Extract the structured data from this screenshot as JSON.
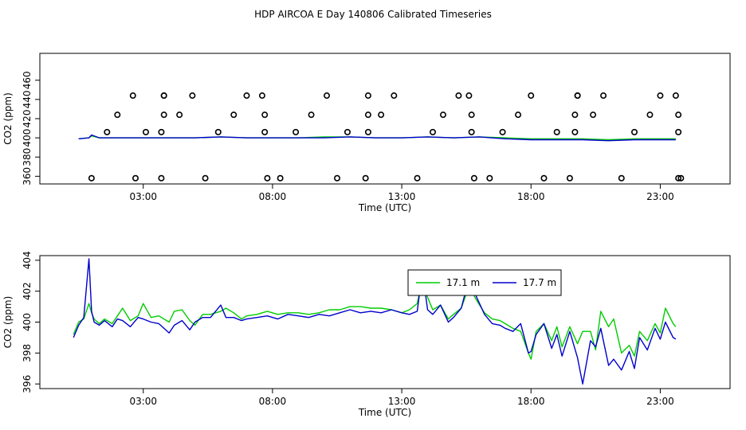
{
  "title": "HDP AIRCOA E  Day 140806  Calibrated Timeseries",
  "chart_data": [
    {
      "type": "scatter+line",
      "xlabel": "Time (UTC)",
      "ylabel": "CO2 (ppm)",
      "xlim": [
        -1.0,
        25.7
      ],
      "ylim": [
        352,
        488
      ],
      "x_ticks": [
        3,
        8,
        13,
        18,
        23
      ],
      "x_tick_labels": [
        "03:00",
        "08:00",
        "13:00",
        "18:00",
        "23:00"
      ],
      "y_ticks": [
        360,
        380,
        400,
        420,
        440,
        460
      ],
      "y_tick_labels": [
        "360",
        "380",
        "400",
        "420",
        "440",
        "460"
      ],
      "legend": "none",
      "series": [
        {
          "color": "#00cc00",
          "x": [
            0.5,
            0.9,
            1.0,
            1.3,
            1.6,
            2.0,
            3.0,
            4.0,
            5.0,
            6.0,
            7.0,
            8.0,
            9.0,
            10.0,
            11.0,
            12.0,
            13.0,
            14.0,
            15.0,
            16.0,
            17.0,
            18.0,
            19.0,
            20.0,
            21.0,
            22.0,
            23.0,
            23.6
          ],
          "y": [
            399,
            400,
            402,
            400,
            400,
            400,
            400,
            400,
            400,
            401,
            400,
            400,
            400,
            401,
            401,
            400,
            400,
            401,
            400,
            401,
            400,
            399,
            399,
            399,
            398,
            399,
            399,
            399
          ]
        },
        {
          "color": "#0000cc",
          "x": [
            0.5,
            0.9,
            1.0,
            1.3,
            1.6,
            2.0,
            3.0,
            4.0,
            5.0,
            6.0,
            7.0,
            8.0,
            9.0,
            10.0,
            11.0,
            12.0,
            13.0,
            14.0,
            15.0,
            16.0,
            17.0,
            18.0,
            19.0,
            20.0,
            21.0,
            22.0,
            23.0,
            23.6
          ],
          "y": [
            399,
            400,
            403,
            400,
            400,
            400,
            400,
            400,
            400,
            401,
            400,
            400,
            400,
            400,
            401,
            400,
            400,
            401,
            400,
            401,
            399,
            398,
            398,
            398,
            397,
            398,
            398,
            398
          ]
        },
        {
          "name": "flags",
          "marker": "open-circle",
          "color": "#000000",
          "x": [
            1.0,
            1.6,
            2.0,
            2.6,
            2.7,
            3.1,
            3.7,
            3.7,
            3.8,
            3.8,
            3.8,
            4.4,
            4.9,
            5.4,
            5.9,
            6.5,
            7.0,
            7.6,
            7.7,
            7.7,
            7.8,
            8.3,
            8.9,
            9.5,
            10.1,
            10.5,
            10.9,
            11.6,
            11.7,
            11.7,
            11.7,
            12.2,
            12.7,
            13.6,
            14.2,
            14.6,
            15.2,
            15.6,
            15.7,
            15.7,
            15.8,
            16.4,
            16.9,
            17.5,
            18.0,
            18.5,
            19.0,
            19.5,
            19.7,
            19.7,
            19.8,
            19.8,
            20.4,
            20.8,
            21.5,
            22.0,
            22.6,
            23.0,
            23.6,
            23.7,
            23.7,
            23.7,
            23.8
          ],
          "y": [
            358,
            406,
            424,
            444,
            358,
            406,
            358,
            406,
            424,
            444,
            444,
            424,
            444,
            358,
            406,
            424,
            444,
            444,
            424,
            406,
            358,
            358,
            406,
            424,
            444,
            358,
            406,
            358,
            406,
            424,
            444,
            424,
            444,
            358,
            406,
            424,
            444,
            444,
            424,
            406,
            358,
            358,
            406,
            424,
            444,
            358,
            406,
            358,
            406,
            424,
            444,
            444,
            424,
            444,
            358,
            406,
            424,
            444,
            444,
            424,
            406,
            358,
            358
          ]
        }
      ]
    },
    {
      "type": "line",
      "xlabel": "Time (UTC)",
      "ylabel": "CO2 (ppm)",
      "xlim": [
        -1.0,
        25.7
      ],
      "ylim": [
        395.7,
        404.3
      ],
      "x_ticks": [
        3,
        8,
        13,
        18,
        23
      ],
      "x_tick_labels": [
        "03:00",
        "08:00",
        "13:00",
        "18:00",
        "23:00"
      ],
      "y_ticks": [
        396,
        398,
        400,
        402,
        404
      ],
      "y_tick_labels": [
        "396",
        "398",
        "400",
        "402",
        "404"
      ],
      "legend": "top-center",
      "series": [
        {
          "name": "17.1 m",
          "color": "#00cc00",
          "x": [
            0.3,
            0.5,
            0.7,
            0.9,
            1.0,
            1.1,
            1.3,
            1.5,
            1.8,
            2.0,
            2.2,
            2.5,
            2.8,
            3.0,
            3.3,
            3.6,
            4.0,
            4.2,
            4.5,
            4.8,
            5.0,
            5.3,
            5.6,
            6.0,
            6.2,
            6.5,
            6.8,
            7.0,
            7.4,
            7.8,
            8.2,
            8.6,
            9.0,
            9.4,
            9.8,
            10.2,
            10.6,
            11.0,
            11.4,
            11.8,
            12.2,
            12.6,
            13.0,
            13.3,
            13.6,
            13.8,
            14.0,
            14.2,
            14.5,
            14.8,
            15.0,
            15.3,
            15.6,
            15.9,
            16.2,
            16.5,
            16.8,
            17.0,
            17.3,
            17.6,
            17.9,
            18.0,
            18.2,
            18.5,
            18.8,
            19.0,
            19.2,
            19.5,
            19.8,
            20.0,
            20.3,
            20.5,
            20.7,
            21.0,
            21.2,
            21.5,
            21.8,
            22.0,
            22.2,
            22.5,
            22.8,
            23.0,
            23.2,
            23.5,
            23.6
          ],
          "y": [
            399.2,
            400.0,
            400.2,
            401.2,
            400.6,
            400.2,
            399.9,
            400.2,
            399.9,
            400.4,
            400.9,
            400.1,
            400.4,
            401.2,
            400.3,
            400.4,
            400.0,
            400.7,
            400.8,
            400.1,
            399.8,
            400.5,
            400.5,
            400.7,
            400.9,
            400.6,
            400.2,
            400.4,
            400.5,
            400.7,
            400.5,
            400.6,
            400.6,
            400.5,
            400.6,
            400.8,
            400.8,
            401.0,
            401.0,
            400.9,
            400.9,
            400.8,
            400.6,
            400.8,
            401.2,
            402.8,
            401.6,
            400.8,
            401.1,
            400.2,
            400.5,
            400.9,
            402.3,
            401.4,
            400.6,
            400.2,
            400.1,
            399.9,
            399.6,
            399.4,
            398.0,
            397.6,
            399.4,
            399.9,
            398.8,
            399.7,
            398.4,
            399.7,
            398.6,
            399.4,
            399.4,
            398.2,
            400.7,
            399.7,
            400.2,
            398.0,
            398.5,
            397.8,
            399.4,
            398.8,
            399.9,
            399.3,
            400.9,
            399.9,
            399.7
          ]
        },
        {
          "name": "17.7 m",
          "color": "#0000cc",
          "x": [
            0.3,
            0.5,
            0.7,
            0.9,
            1.0,
            1.1,
            1.3,
            1.5,
            1.8,
            2.0,
            2.2,
            2.5,
            2.8,
            3.0,
            3.3,
            3.6,
            4.0,
            4.2,
            4.5,
            4.8,
            5.0,
            5.3,
            5.6,
            6.0,
            6.2,
            6.5,
            6.8,
            7.0,
            7.4,
            7.8,
            8.2,
            8.6,
            9.0,
            9.4,
            9.8,
            10.2,
            10.6,
            11.0,
            11.4,
            11.8,
            12.2,
            12.6,
            13.0,
            13.3,
            13.6,
            13.8,
            14.0,
            14.2,
            14.5,
            14.8,
            15.0,
            15.3,
            15.6,
            15.9,
            16.2,
            16.5,
            16.8,
            17.0,
            17.3,
            17.6,
            17.9,
            18.0,
            18.2,
            18.5,
            18.8,
            19.0,
            19.2,
            19.5,
            19.8,
            20.0,
            20.3,
            20.5,
            20.7,
            21.0,
            21.2,
            21.5,
            21.8,
            22.0,
            22.2,
            22.5,
            22.8,
            23.0,
            23.2,
            23.5,
            23.6
          ],
          "y": [
            399.0,
            399.8,
            400.3,
            404.1,
            400.7,
            400.0,
            399.8,
            400.1,
            399.7,
            400.2,
            400.1,
            399.7,
            400.3,
            400.2,
            400.0,
            399.9,
            399.3,
            399.8,
            400.1,
            399.5,
            400.0,
            400.3,
            400.3,
            401.1,
            400.3,
            400.3,
            400.1,
            400.2,
            400.3,
            400.4,
            400.2,
            400.5,
            400.4,
            400.3,
            400.5,
            400.4,
            400.6,
            400.8,
            400.6,
            400.7,
            400.6,
            400.8,
            400.6,
            400.5,
            400.7,
            403.3,
            400.8,
            400.5,
            401.1,
            400.0,
            400.3,
            400.9,
            402.8,
            401.6,
            400.5,
            399.9,
            399.8,
            399.6,
            399.4,
            399.9,
            398.0,
            398.1,
            399.2,
            399.9,
            398.3,
            399.2,
            397.8,
            399.4,
            397.7,
            396.0,
            398.8,
            398.4,
            399.6,
            397.2,
            397.6,
            396.9,
            398.1,
            397.0,
            399.0,
            398.2,
            399.6,
            398.9,
            400.0,
            399.0,
            398.9
          ]
        }
      ]
    }
  ]
}
